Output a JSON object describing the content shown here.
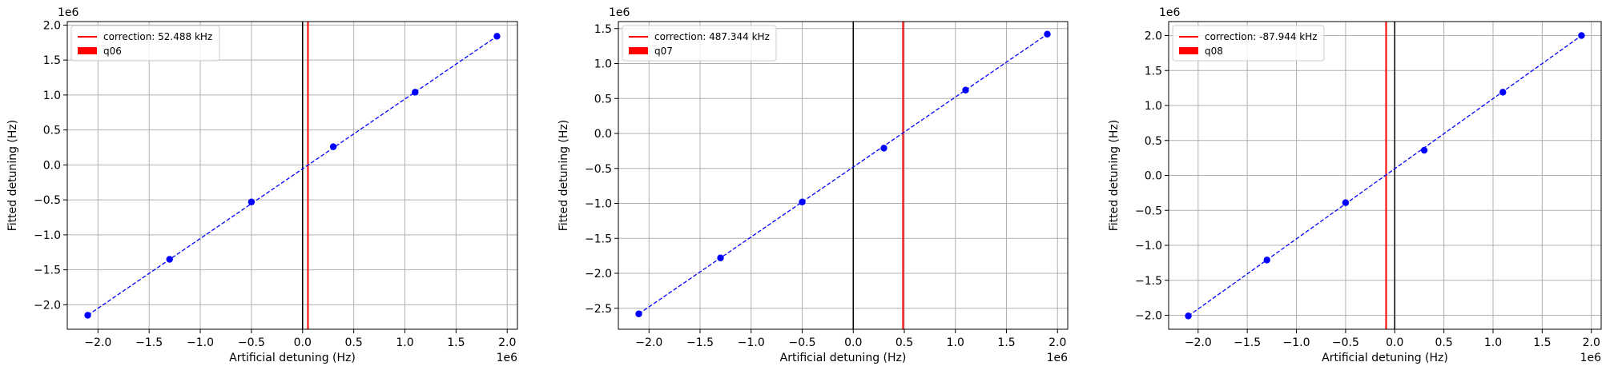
{
  "chart_data": [
    {
      "type": "scatter",
      "title": "",
      "xlabel": "Artificial detuning (Hz)",
      "ylabel": "Fitted detuning (Hz)",
      "x_offset_label": "1e6",
      "y_offset_label": "1e6",
      "xlim": [
        -2.3,
        2.1
      ],
      "ylim": [
        -2.35,
        2.05
      ],
      "xticks": [
        -2.0,
        -1.5,
        -1.0,
        -0.5,
        0.0,
        0.5,
        1.0,
        1.5,
        2.0
      ],
      "xtick_labels": [
        "−2.0",
        "−1.5",
        "−1.0",
        "−0.5",
        "0.0",
        "0.5",
        "1.0",
        "1.5",
        "2.0"
      ],
      "yticks": [
        -2.0,
        -1.5,
        -1.0,
        -0.5,
        0.0,
        0.5,
        1.0,
        1.5,
        2.0
      ],
      "ytick_labels": [
        "−2.0",
        "−1.5",
        "−1.0",
        "−0.5",
        "0.0",
        "0.5",
        "1.0",
        "1.5",
        "2.0"
      ],
      "grid": true,
      "legend_position": "top-left",
      "legend": [
        {
          "label": "correction: 52.488 kHz",
          "kind": "line",
          "color": "#ff0000"
        },
        {
          "label": "q06",
          "kind": "patch",
          "color": "#ff0000"
        }
      ],
      "correction_x": 0.052488,
      "zero_x": 0.0,
      "points": {
        "x": [
          -2.1,
          -1.3,
          -0.5,
          0.3,
          1.1,
          1.9
        ],
        "y": [
          -2.15,
          -1.35,
          -0.53,
          0.26,
          1.04,
          1.84
        ]
      },
      "fit_line": {
        "x": [
          -2.1,
          1.9
        ],
        "y": [
          -2.15,
          1.84
        ]
      }
    },
    {
      "type": "scatter",
      "title": "",
      "xlabel": "Artificial detuning (Hz)",
      "ylabel": "Fitted detuning (Hz)",
      "x_offset_label": "1e6",
      "y_offset_label": "1e6",
      "xlim": [
        -2.3,
        2.1
      ],
      "ylim": [
        -2.8,
        1.6
      ],
      "xticks": [
        -2.0,
        -1.5,
        -1.0,
        -0.5,
        0.0,
        0.5,
        1.0,
        1.5,
        2.0
      ],
      "xtick_labels": [
        "−2.0",
        "−1.5",
        "−1.0",
        "−0.5",
        "0.0",
        "0.5",
        "1.0",
        "1.5",
        "2.0"
      ],
      "yticks": [
        -2.5,
        -2.0,
        -1.5,
        -1.0,
        -0.5,
        0.0,
        0.5,
        1.0,
        1.5
      ],
      "ytick_labels": [
        "−2.5",
        "−2.0",
        "−1.5",
        "−1.0",
        "−0.5",
        "0.0",
        "0.5",
        "1.0",
        "1.5"
      ],
      "grid": true,
      "legend_position": "top-left",
      "legend": [
        {
          "label": "correction: 487.344 kHz",
          "kind": "line",
          "color": "#ff0000"
        },
        {
          "label": "q07",
          "kind": "patch",
          "color": "#ff0000"
        }
      ],
      "correction_x": 0.487344,
      "zero_x": 0.0,
      "points": {
        "x": [
          -2.1,
          -1.3,
          -0.5,
          0.3,
          1.1,
          1.9
        ],
        "y": [
          -2.58,
          -1.78,
          -0.98,
          -0.21,
          0.62,
          1.42
        ]
      },
      "fit_line": {
        "x": [
          -2.1,
          1.9
        ],
        "y": [
          -2.58,
          1.42
        ]
      }
    },
    {
      "type": "scatter",
      "title": "",
      "xlabel": "Artificial detuning (Hz)",
      "ylabel": "Fitted detuning (Hz)",
      "x_offset_label": "1e6",
      "y_offset_label": "1e6",
      "xlim": [
        -2.3,
        2.1
      ],
      "ylim": [
        -2.2,
        2.2
      ],
      "xticks": [
        -2.0,
        -1.5,
        -1.0,
        -0.5,
        0.0,
        0.5,
        1.0,
        1.5,
        2.0
      ],
      "xtick_labels": [
        "−2.0",
        "−1.5",
        "−1.0",
        "−0.5",
        "0.0",
        "0.5",
        "1.0",
        "1.5",
        "2.0"
      ],
      "yticks": [
        -2.0,
        -1.5,
        -1.0,
        -0.5,
        0.0,
        0.5,
        1.0,
        1.5,
        2.0
      ],
      "ytick_labels": [
        "−2.0",
        "−1.5",
        "−1.0",
        "−0.5",
        "0.0",
        "0.5",
        "1.0",
        "1.5",
        "2.0"
      ],
      "grid": true,
      "legend_position": "top-left",
      "legend": [
        {
          "label": "correction: -87.944 kHz",
          "kind": "line",
          "color": "#ff0000"
        },
        {
          "label": "q08",
          "kind": "patch",
          "color": "#ff0000"
        }
      ],
      "correction_x": -0.087944,
      "zero_x": 0.0,
      "points": {
        "x": [
          -2.1,
          -1.3,
          -0.5,
          0.3,
          1.1,
          1.9
        ],
        "y": [
          -2.01,
          -1.21,
          -0.39,
          0.36,
          1.19,
          2.0
        ]
      },
      "fit_line": {
        "x": [
          -2.1,
          1.9
        ],
        "y": [
          -2.01,
          2.0
        ]
      }
    }
  ],
  "colors": {
    "data": "#0000ff",
    "correction": "#ff0000",
    "zero": "#000000",
    "grid": "#b0b0b0"
  }
}
